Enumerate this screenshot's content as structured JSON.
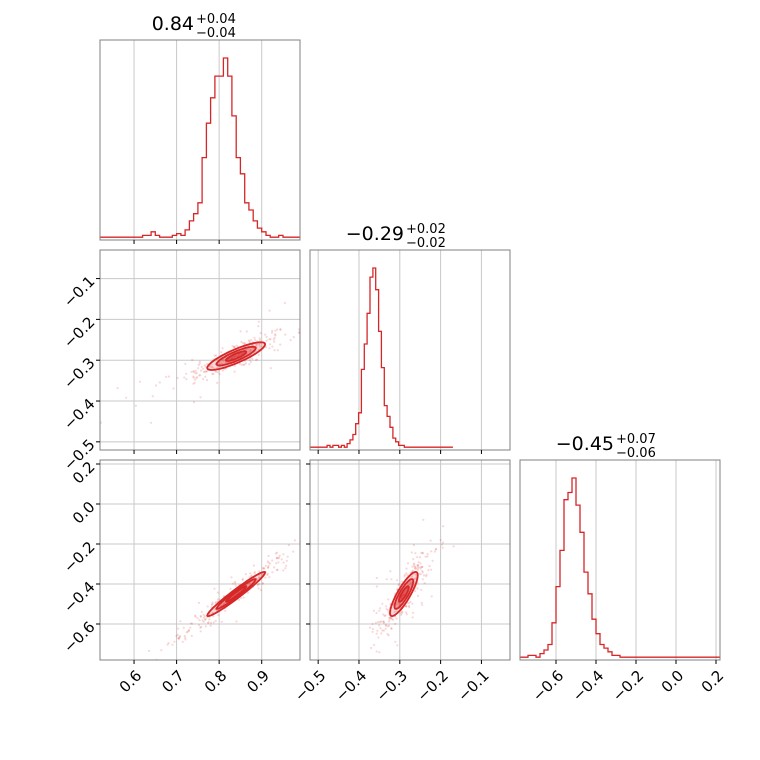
{
  "chart_data": {
    "type": "corner",
    "color": "#d62728",
    "grid": true,
    "parameters": [
      {
        "title": "0.84",
        "err_plus": "+0.04",
        "err_minus": "−0.04",
        "range": [
          0.52,
          0.99
        ],
        "ticks": [
          0.6,
          0.7,
          0.8,
          0.9
        ],
        "tick_labels": [
          "0.6",
          "0.7",
          "0.8",
          "0.9"
        ],
        "histogram": {
          "bin_start": 0.52,
          "bin_width": 0.01,
          "counts": [
            1,
            1,
            1,
            1,
            1,
            1,
            1,
            1,
            1,
            1,
            2,
            2,
            4,
            2,
            1,
            1,
            1,
            2,
            3,
            2,
            5,
            10,
            14,
            20,
            45,
            64,
            78,
            90,
            90,
            100,
            90,
            68,
            45,
            36,
            20,
            16,
            10,
            6,
            4,
            2,
            1,
            1,
            2,
            1,
            1,
            1,
            1
          ]
        }
      },
      {
        "title": "−0.29",
        "err_plus": "+0.02",
        "err_minus": "−0.02",
        "range": [
          -0.52,
          -0.03
        ],
        "ticks": [
          -0.5,
          -0.4,
          -0.3,
          -0.2,
          -0.1
        ],
        "tick_labels": [
          "−0.5",
          "−0.4",
          "−0.3",
          "−0.2",
          "−0.1"
        ],
        "histogram": {
          "bin_start": -0.52,
          "bin_width": 0.007,
          "counts": [
            1,
            1,
            1,
            1,
            1,
            1,
            2,
            1,
            2,
            2,
            1,
            2,
            1,
            3,
            5,
            8,
            14,
            20,
            44,
            58,
            75,
            95,
            100,
            88,
            65,
            45,
            24,
            18,
            12,
            6,
            4,
            2,
            2,
            1,
            1,
            1,
            1,
            1,
            1,
            1,
            1,
            1,
            1,
            1,
            1,
            1,
            1,
            1,
            1,
            1
          ]
        }
      },
      {
        "title": "−0.45",
        "err_plus": "+0.07",
        "err_minus": "−0.06",
        "range": [
          -0.78,
          0.22
        ],
        "ticks": [
          -0.6,
          -0.4,
          -0.2,
          0.0,
          0.2
        ],
        "tick_labels": [
          "−0.6",
          "−0.4",
          "−0.2",
          "0.0",
          "0.2"
        ],
        "histogram": {
          "bin_start": -0.78,
          "bin_width": 0.02,
          "counts": [
            1,
            1,
            2,
            2,
            1,
            3,
            5,
            8,
            20,
            40,
            60,
            88,
            92,
            100,
            85,
            70,
            48,
            36,
            22,
            14,
            8,
            6,
            4,
            2,
            2,
            1,
            1,
            1,
            1,
            1,
            1,
            1,
            1,
            1,
            1,
            1,
            1,
            1,
            1,
            1,
            1,
            1,
            1,
            1,
            1,
            1,
            1,
            1,
            1,
            1
          ]
        }
      }
    ],
    "correlations": [
      {
        "x_param": 0,
        "y_param": 1,
        "mean": [
          0.84,
          -0.29
        ],
        "sd": [
          0.04,
          0.02
        ],
        "rho": 0.85
      },
      {
        "x_param": 0,
        "y_param": 2,
        "mean": [
          0.84,
          -0.45
        ],
        "sd": [
          0.04,
          0.065
        ],
        "rho": 0.97
      },
      {
        "x_param": 1,
        "y_param": 2,
        "mean": [
          -0.29,
          -0.45
        ],
        "sd": [
          0.02,
          0.065
        ],
        "rho": 0.85
      }
    ]
  }
}
